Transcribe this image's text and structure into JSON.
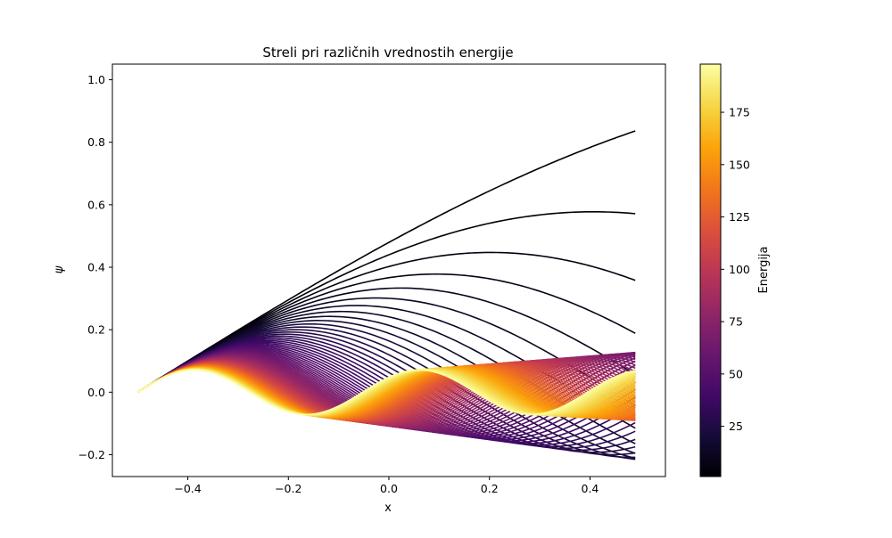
{
  "chart_data": {
    "type": "line",
    "title": "Streli pri različnih vrednostih energije",
    "xlabel": "x",
    "ylabel": "ψ",
    "xlim": [
      -0.55,
      0.55
    ],
    "ylim": [
      -0.27,
      1.05
    ],
    "x_range": [
      -0.5,
      0.49
    ],
    "x_ticks": [
      -0.4,
      -0.2,
      0.0,
      0.2,
      0.4
    ],
    "x_tick_labels": [
      "−0.4",
      "−0.2",
      "0.0",
      "0.2",
      "0.4"
    ],
    "y_ticks": [
      -0.2,
      0.0,
      0.2,
      0.4,
      0.6,
      0.8,
      1.0
    ],
    "y_tick_labels": [
      "−0.2",
      "0.0",
      "0.2",
      "0.4",
      "0.6",
      "0.8",
      "1.0"
    ],
    "grid": false,
    "colormap": "inferno",
    "colorbar": {
      "label": "Energija",
      "range": [
        1,
        198
      ],
      "ticks": [
        25,
        50,
        75,
        100,
        125,
        150,
        175
      ],
      "tick_labels": [
        "25",
        "50",
        "75",
        "100",
        "125",
        "150",
        "175"
      ]
    },
    "series_energy": {
      "start": 1,
      "stop": 197,
      "step": 2
    },
    "curve_family": "psi(x) = sin(sqrt(E)*(x+0.5))/sqrt(E), psi(-0.5)=0, psi'(-0.5)=1"
  }
}
